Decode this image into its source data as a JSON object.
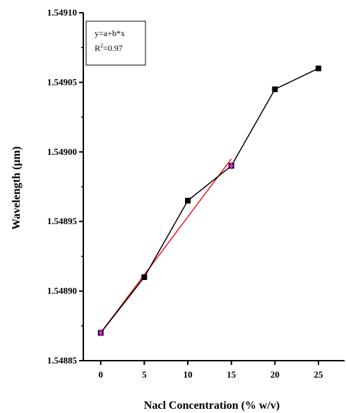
{
  "chart_data": {
    "type": "line",
    "title": "",
    "xlabel": "Nacl Concentration (% w/v)",
    "ylabel": "Wavelength (µm)",
    "xlim": [
      -2,
      28
    ],
    "ylim": [
      1.54885,
      1.5491
    ],
    "x_ticks": [
      0,
      5,
      10,
      15,
      20,
      25
    ],
    "x_tick_labels": [
      "0",
      "5",
      "10",
      "15",
      "20",
      "25"
    ],
    "y_ticks": [
      1.54885,
      1.5489,
      1.54895,
      1.549,
      1.54905,
      1.5491
    ],
    "y_tick_labels": [
      "1.54885",
      "1.54890",
      "1.54895",
      "1.54900",
      "1.54905",
      "1.54910"
    ],
    "grid": false,
    "legend_position": "top-left",
    "legend": {
      "line1": "y=a+b*x",
      "line2_prefix": "R",
      "line2_sup": "2",
      "line2_suffix": "=0.97"
    },
    "series": [
      {
        "color": "#000000",
        "marker": "square",
        "x": [
          0,
          5,
          10,
          15,
          20,
          25
        ],
        "y": [
          1.54887,
          1.54891,
          1.548965,
          1.54899,
          1.549045,
          1.54906
        ]
      }
    ],
    "fit_line": {
      "color": "#e8232a",
      "x": [
        0,
        15
      ],
      "y": [
        1.54887,
        1.548995
      ]
    },
    "error_bars": {
      "color": "#e020d8",
      "x": [
        0,
        15
      ],
      "y": [
        1.54887,
        1.54899
      ],
      "delta": 2.5e-06
    }
  }
}
